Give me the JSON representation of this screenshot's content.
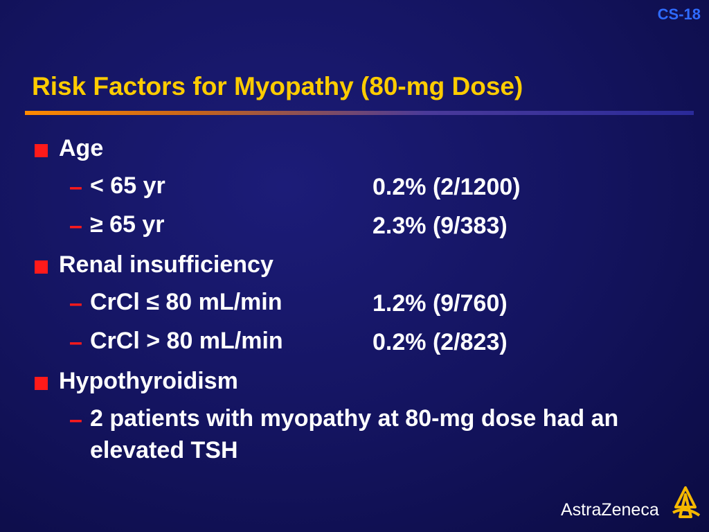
{
  "slide_id": "CS-18",
  "title": "Risk Factors for Myopathy (80-mg Dose)",
  "bullets": [
    {
      "text": "Age",
      "items": [
        {
          "label": "< 65 yr",
          "value": "0.2% (2/1200)"
        },
        {
          "label": "≥ 65 yr",
          "value": "2.3% (9/383)"
        }
      ]
    },
    {
      "text": "Renal insufficiency",
      "items": [
        {
          "label": "CrCl ≤ 80 mL/min",
          "value": "1.2% (9/760)"
        },
        {
          "label": "CrCl > 80 mL/min",
          "value": "0.2% (2/823)"
        }
      ]
    },
    {
      "text": "Hypothyroidism",
      "items": [
        {
          "label": "2 patients with myopathy at 80-mg dose had an elevated TSH"
        }
      ]
    }
  ],
  "logo": "AstraZeneca"
}
